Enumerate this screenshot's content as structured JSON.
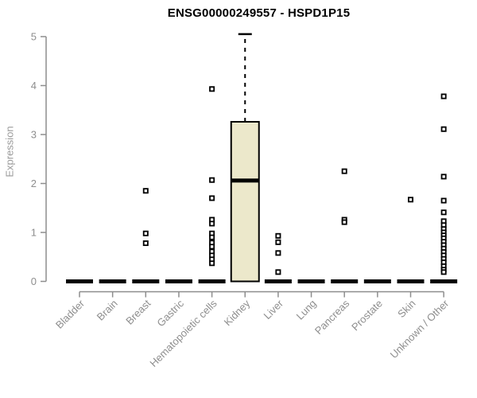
{
  "chart_data": {
    "type": "boxplot",
    "title": "ENSG00000249557 - HSPD1P15",
    "ylabel": "Expression",
    "xlabel": "",
    "ylim": [
      0,
      5
    ],
    "yticks": [
      0,
      1,
      2,
      3,
      4,
      5
    ],
    "grid": false,
    "legend": "none",
    "box_fill_color": "#ece8cb",
    "box_border_color": "#000000",
    "axis_color": "#8e8e8e",
    "tick_label_color": "#8e8e8e",
    "title_color": "#000000",
    "outlier_marker": "open-square",
    "categories": [
      "Bladder",
      "Brain",
      "Breast",
      "Gastric",
      "Hematopoietic cells",
      "Kidney",
      "Liver",
      "Lung",
      "Pancreas",
      "Prostate",
      "Skin",
      "Unknown / Other"
    ],
    "boxes": [
      {
        "label": "Bladder",
        "whisker_low": 0,
        "q1": 0,
        "median": 0,
        "q3": 0,
        "whisker_high": 0,
        "outliers": []
      },
      {
        "label": "Brain",
        "whisker_low": 0,
        "q1": 0,
        "median": 0,
        "q3": 0,
        "whisker_high": 0,
        "outliers": []
      },
      {
        "label": "Breast",
        "whisker_low": 0,
        "q1": 0,
        "median": 0,
        "q3": 0,
        "whisker_high": 0,
        "outliers": [
          1.85,
          0.98,
          0.78
        ]
      },
      {
        "label": "Gastric",
        "whisker_low": 0,
        "q1": 0,
        "median": 0,
        "q3": 0,
        "whisker_high": 0,
        "outliers": []
      },
      {
        "label": "Hematopoietic cells",
        "whisker_low": 0,
        "q1": 0,
        "median": 0,
        "q3": 0,
        "whisker_high": 0,
        "outliers": [
          3.93,
          2.07,
          1.7,
          1.26,
          1.18,
          0.98,
          0.9,
          0.79,
          0.71,
          0.61,
          0.53,
          0.45,
          0.37
        ]
      },
      {
        "label": "Kidney",
        "whisker_low": 0,
        "q1": 0,
        "median": 2.06,
        "q3": 3.26,
        "whisker_high": 5.05,
        "outliers": []
      },
      {
        "label": "Liver",
        "whisker_low": 0,
        "q1": 0,
        "median": 0,
        "q3": 0,
        "whisker_high": 0,
        "outliers": [
          0.93,
          0.8,
          0.58,
          0.19
        ]
      },
      {
        "label": "Lung",
        "whisker_low": 0,
        "q1": 0,
        "median": 0,
        "q3": 0,
        "whisker_high": 0,
        "outliers": []
      },
      {
        "label": "Pancreas",
        "whisker_low": 0,
        "q1": 0,
        "median": 0,
        "q3": 0,
        "whisker_high": 0,
        "outliers": [
          2.25,
          1.26,
          1.21
        ]
      },
      {
        "label": "Prostate",
        "whisker_low": 0,
        "q1": 0,
        "median": 0,
        "q3": 0,
        "whisker_high": 0,
        "outliers": []
      },
      {
        "label": "Skin",
        "whisker_low": 0,
        "q1": 0,
        "median": 0,
        "q3": 0,
        "whisker_high": 0,
        "outliers": [
          1.67
        ]
      },
      {
        "label": "Unknown / Other",
        "whisker_low": 0,
        "q1": 0,
        "median": 0,
        "q3": 0,
        "whisker_high": 0,
        "outliers": [
          3.78,
          3.11,
          2.14,
          1.65,
          1.41,
          1.23,
          1.15,
          1.07,
          1.0,
          0.94,
          0.88,
          0.81,
          0.74,
          0.67,
          0.6,
          0.53,
          0.46,
          0.39,
          0.31,
          0.24,
          0.19
        ]
      }
    ]
  }
}
